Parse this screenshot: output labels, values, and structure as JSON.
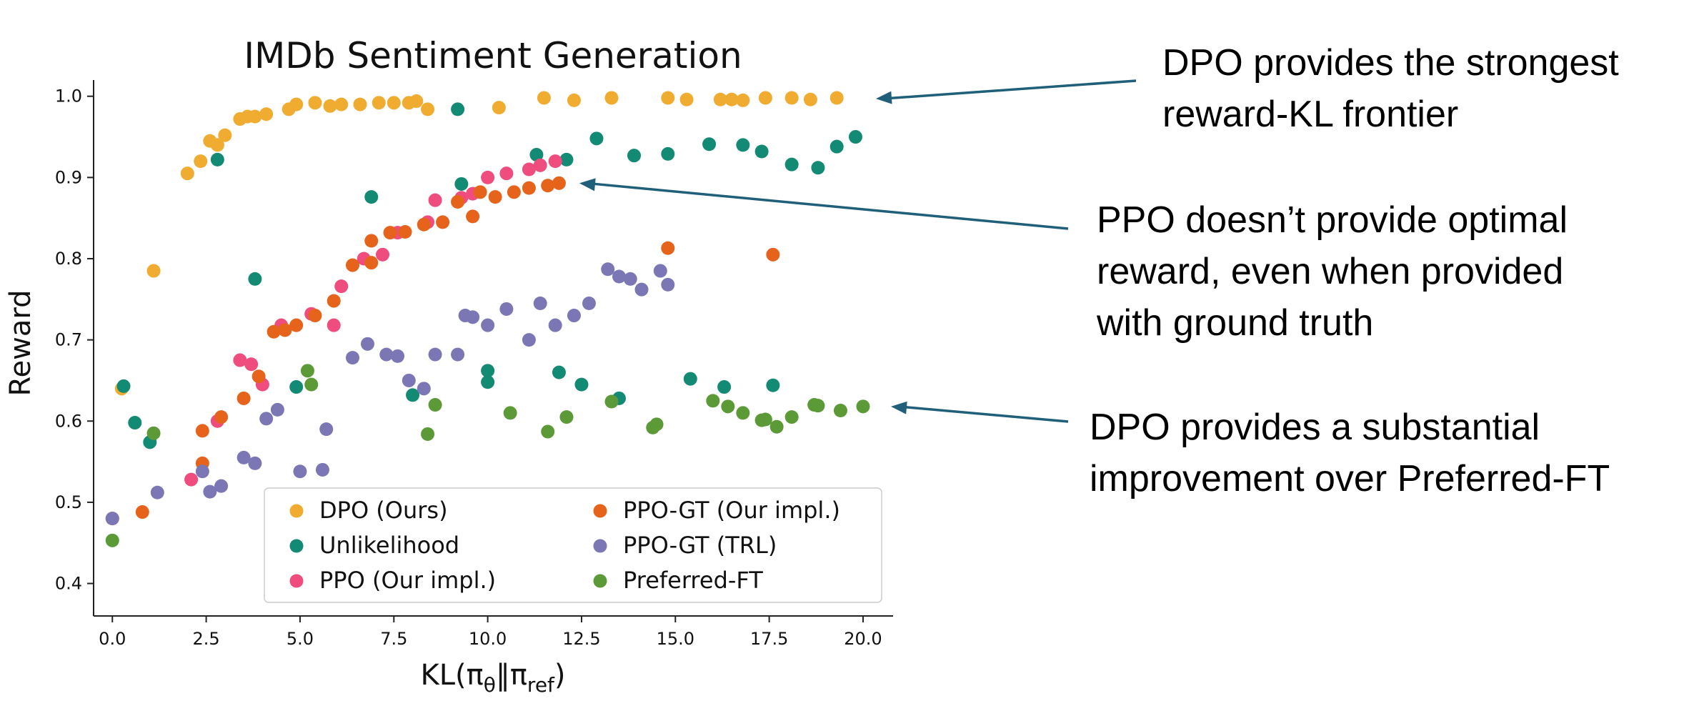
{
  "chart_data": {
    "type": "scatter",
    "title": "IMDb Sentiment Generation",
    "xlabel": "KL(πθ‖πref)",
    "ylabel": "Reward",
    "xlim": [
      -0.5,
      20.8
    ],
    "ylim": [
      0.36,
      1.02
    ],
    "xticks": [
      "0.0",
      "2.5",
      "5.0",
      "7.5",
      "10.0",
      "12.5",
      "15.0",
      "17.5",
      "20.0"
    ],
    "yticks": [
      "0.4",
      "0.5",
      "0.6",
      "0.7",
      "0.8",
      "0.9",
      "1.0"
    ],
    "grid": false,
    "legend_position": "bottom-center",
    "series": [
      {
        "name": "DPO (Ours)",
        "color": "#f0ab31",
        "points": [
          [
            0.25,
            0.64
          ],
          [
            1.1,
            0.785
          ],
          [
            2.0,
            0.905
          ],
          [
            2.35,
            0.92
          ],
          [
            2.6,
            0.945
          ],
          [
            2.8,
            0.94
          ],
          [
            3.0,
            0.952
          ],
          [
            3.4,
            0.972
          ],
          [
            3.6,
            0.975
          ],
          [
            3.8,
            0.975
          ],
          [
            4.1,
            0.978
          ],
          [
            4.7,
            0.984
          ],
          [
            4.9,
            0.99
          ],
          [
            5.4,
            0.992
          ],
          [
            5.8,
            0.988
          ],
          [
            6.1,
            0.99
          ],
          [
            6.6,
            0.99
          ],
          [
            7.1,
            0.992
          ],
          [
            7.5,
            0.992
          ],
          [
            7.9,
            0.992
          ],
          [
            8.1,
            0.994
          ],
          [
            8.4,
            0.984
          ],
          [
            10.3,
            0.986
          ],
          [
            11.5,
            0.998
          ],
          [
            12.3,
            0.995
          ],
          [
            13.3,
            0.998
          ],
          [
            14.8,
            0.998
          ],
          [
            15.3,
            0.996
          ],
          [
            16.2,
            0.996
          ],
          [
            16.5,
            0.996
          ],
          [
            16.8,
            0.995
          ],
          [
            17.4,
            0.998
          ],
          [
            18.1,
            0.998
          ],
          [
            18.6,
            0.996
          ],
          [
            19.3,
            0.998
          ]
        ]
      },
      {
        "name": "Unlikelihood",
        "color": "#138a74",
        "points": [
          [
            0.3,
            0.643
          ],
          [
            0.6,
            0.598
          ],
          [
            1.0,
            0.574
          ],
          [
            2.8,
            0.922
          ],
          [
            3.8,
            0.775
          ],
          [
            4.9,
            0.642
          ],
          [
            6.9,
            0.876
          ],
          [
            8.0,
            0.632
          ],
          [
            9.2,
            0.984
          ],
          [
            9.3,
            0.892
          ],
          [
            10.0,
            0.648
          ],
          [
            10.0,
            0.662
          ],
          [
            11.3,
            0.928
          ],
          [
            11.9,
            0.66
          ],
          [
            12.1,
            0.922
          ],
          [
            12.5,
            0.645
          ],
          [
            13.5,
            0.628
          ],
          [
            12.9,
            0.948
          ],
          [
            13.9,
            0.927
          ],
          [
            14.8,
            0.929
          ],
          [
            15.4,
            0.652
          ],
          [
            15.9,
            0.941
          ],
          [
            16.3,
            0.642
          ],
          [
            16.8,
            0.94
          ],
          [
            17.3,
            0.932
          ],
          [
            17.6,
            0.644
          ],
          [
            18.1,
            0.916
          ],
          [
            18.8,
            0.912
          ],
          [
            19.3,
            0.938
          ],
          [
            19.8,
            0.95
          ]
        ]
      },
      {
        "name": "PPO (Our impl.)",
        "color": "#ee4d7d",
        "points": [
          [
            0.0,
            0.48
          ],
          [
            2.1,
            0.528
          ],
          [
            2.8,
            0.6
          ],
          [
            3.4,
            0.675
          ],
          [
            3.7,
            0.67
          ],
          [
            4.0,
            0.645
          ],
          [
            4.5,
            0.718
          ],
          [
            5.3,
            0.732
          ],
          [
            5.9,
            0.718
          ],
          [
            6.1,
            0.766
          ],
          [
            6.7,
            0.8
          ],
          [
            7.2,
            0.805
          ],
          [
            7.6,
            0.832
          ],
          [
            8.4,
            0.845
          ],
          [
            8.6,
            0.872
          ],
          [
            9.3,
            0.875
          ],
          [
            9.6,
            0.88
          ],
          [
            10.0,
            0.9
          ],
          [
            10.5,
            0.905
          ],
          [
            11.1,
            0.91
          ],
          [
            11.4,
            0.915
          ],
          [
            11.8,
            0.92
          ]
        ]
      },
      {
        "name": "PPO-GT (Our impl.)",
        "color": "#e6631c",
        "points": [
          [
            0.8,
            0.488
          ],
          [
            2.4,
            0.548
          ],
          [
            2.4,
            0.588
          ],
          [
            2.9,
            0.605
          ],
          [
            3.5,
            0.628
          ],
          [
            3.9,
            0.655
          ],
          [
            4.3,
            0.71
          ],
          [
            4.6,
            0.712
          ],
          [
            4.9,
            0.718
          ],
          [
            5.4,
            0.73
          ],
          [
            5.9,
            0.748
          ],
          [
            6.4,
            0.792
          ],
          [
            6.9,
            0.795
          ],
          [
            6.9,
            0.822
          ],
          [
            7.4,
            0.832
          ],
          [
            7.8,
            0.833
          ],
          [
            8.3,
            0.842
          ],
          [
            8.8,
            0.845
          ],
          [
            9.2,
            0.87
          ],
          [
            9.6,
            0.852
          ],
          [
            9.8,
            0.882
          ],
          [
            10.2,
            0.876
          ],
          [
            10.7,
            0.882
          ],
          [
            11.1,
            0.887
          ],
          [
            11.6,
            0.89
          ],
          [
            11.9,
            0.893
          ],
          [
            14.8,
            0.813
          ],
          [
            17.6,
            0.805
          ]
        ]
      },
      {
        "name": "PPO-GT (TRL)",
        "color": "#7b77b5",
        "points": [
          [
            0.0,
            0.48
          ],
          [
            1.2,
            0.512
          ],
          [
            2.4,
            0.538
          ],
          [
            2.6,
            0.513
          ],
          [
            2.9,
            0.52
          ],
          [
            3.5,
            0.555
          ],
          [
            3.8,
            0.548
          ],
          [
            4.1,
            0.603
          ],
          [
            4.4,
            0.614
          ],
          [
            5.0,
            0.538
          ],
          [
            5.6,
            0.54
          ],
          [
            5.7,
            0.59
          ],
          [
            6.4,
            0.678
          ],
          [
            6.8,
            0.695
          ],
          [
            7.3,
            0.682
          ],
          [
            7.6,
            0.68
          ],
          [
            7.9,
            0.65
          ],
          [
            8.3,
            0.64
          ],
          [
            8.6,
            0.682
          ],
          [
            9.2,
            0.682
          ],
          [
            9.4,
            0.73
          ],
          [
            9.6,
            0.728
          ],
          [
            10.0,
            0.718
          ],
          [
            10.5,
            0.738
          ],
          [
            11.1,
            0.7
          ],
          [
            11.4,
            0.745
          ],
          [
            11.8,
            0.718
          ],
          [
            12.3,
            0.73
          ],
          [
            12.7,
            0.745
          ],
          [
            13.2,
            0.787
          ],
          [
            13.5,
            0.778
          ],
          [
            13.8,
            0.775
          ],
          [
            14.1,
            0.762
          ],
          [
            14.6,
            0.785
          ],
          [
            14.8,
            0.768
          ]
        ]
      },
      {
        "name": "Preferred-FT",
        "color": "#5c9a38",
        "points": [
          [
            0.0,
            0.453
          ],
          [
            1.1,
            0.585
          ],
          [
            5.2,
            0.662
          ],
          [
            5.3,
            0.645
          ],
          [
            8.4,
            0.584
          ],
          [
            8.6,
            0.62
          ],
          [
            10.6,
            0.61
          ],
          [
            11.6,
            0.587
          ],
          [
            12.1,
            0.605
          ],
          [
            13.3,
            0.624
          ],
          [
            14.4,
            0.592
          ],
          [
            14.5,
            0.596
          ],
          [
            16.0,
            0.625
          ],
          [
            16.4,
            0.618
          ],
          [
            16.8,
            0.61
          ],
          [
            17.3,
            0.601
          ],
          [
            17.4,
            0.602
          ],
          [
            17.7,
            0.593
          ],
          [
            18.1,
            0.605
          ],
          [
            18.7,
            0.62
          ],
          [
            18.8,
            0.619
          ],
          [
            19.4,
            0.613
          ],
          [
            20.0,
            0.618
          ]
        ]
      }
    ]
  },
  "annotations": [
    {
      "text": "DPO provides the strongest\nreward-KL frontier",
      "target": [
        20.0,
        0.997
      ]
    },
    {
      "text": "PPO doesn’t provide optimal\nreward, even when provided\nwith ground truth",
      "target": [
        12.1,
        0.893
      ]
    },
    {
      "text": "DPO provides a substantial\nimprovement over Preferred-FT",
      "target": [
        20.4,
        0.618
      ]
    }
  ],
  "arrow_color": "#1f5f7a"
}
